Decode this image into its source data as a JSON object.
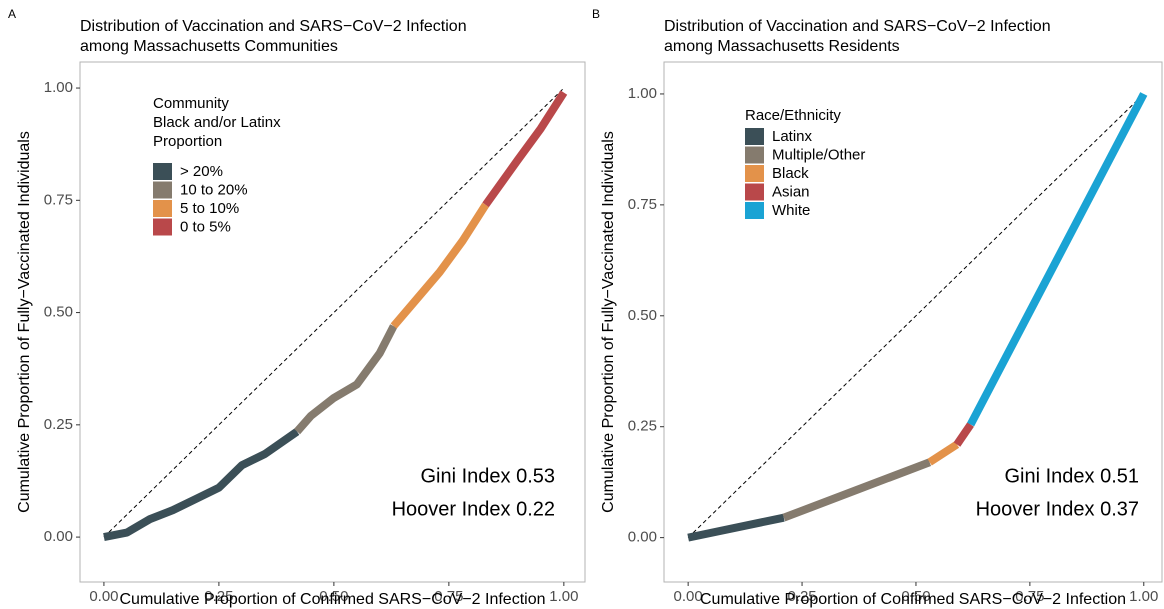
{
  "chart_data": [
    {
      "type": "line",
      "panel": "A",
      "title": [
        "Distribution of Vaccination and SARS−CoV−2 Infection",
        "among Massachusetts Communities"
      ],
      "xlabel": "Cumulative Proportion of Confirmed SARS−CoV−2 Infection",
      "ylabel": "Cumulative Proportion of Fully−Vaccinated Individuals",
      "legend_title": [
        "Community",
        "Black and/or Latinx",
        "Proportion"
      ],
      "annotations": [
        "Gini Index 0.53",
        "Hoover Index 0.22"
      ],
      "xlim": [
        -0.052,
        1.046
      ],
      "ylim": [
        -0.1,
        1.058
      ],
      "xticks": [
        {
          "value": 0,
          "label": "0.00"
        },
        {
          "value": 0.25,
          "label": "0.25"
        },
        {
          "value": 0.5,
          "label": "0.50"
        },
        {
          "value": 0.75,
          "label": "0.75"
        },
        {
          "value": 1,
          "label": "1.00"
        }
      ],
      "yticks": [
        {
          "value": 0,
          "label": "0.00"
        },
        {
          "value": 0.25,
          "label": "0.25"
        },
        {
          "value": 0.5,
          "label": "0.50"
        },
        {
          "value": 0.75,
          "label": "0.75"
        },
        {
          "value": 1,
          "label": "1.00"
        }
      ],
      "series": [
        {
          "name": "> 20%",
          "color": "#3b4f57",
          "x": [
            0,
            0.05,
            0.1,
            0.15,
            0.2,
            0.25,
            0.3,
            0.35,
            0.42
          ],
          "values": [
            0,
            0.01,
            0.04,
            0.06,
            0.085,
            0.11,
            0.16,
            0.185,
            0.235
          ]
        },
        {
          "name": "10 to 20%",
          "color": "#857b6e",
          "x": [
            0.42,
            0.45,
            0.5,
            0.55,
            0.6,
            0.63
          ],
          "values": [
            0.235,
            0.27,
            0.31,
            0.34,
            0.41,
            0.47
          ]
        },
        {
          "name": "5 to 10%",
          "color": "#e3924a",
          "x": [
            0.63,
            0.68,
            0.73,
            0.78,
            0.83
          ],
          "values": [
            0.47,
            0.53,
            0.59,
            0.66,
            0.74
          ]
        },
        {
          "name": "0 to 5%",
          "color": "#b9484a",
          "x": [
            0.83,
            0.9,
            0.95,
            1.0
          ],
          "values": [
            0.74,
            0.84,
            0.91,
            0.99
          ]
        }
      ]
    },
    {
      "type": "line",
      "panel": "B",
      "title": [
        "Distribution of Vaccination and SARS−CoV−2 Infection",
        "among Massachusetts Residents"
      ],
      "xlabel": "Cumulative Proportion of Confirmed SARS−CoV−2 Infection",
      "ylabel": "Cumulative Proportion of Fully−Vaccinated Individuals",
      "legend_title": [
        "Race/Ethnicity"
      ],
      "annotations": [
        "Gini Index 0.51",
        "Hoover Index 0.37"
      ],
      "xlim": [
        -0.053,
        1.04
      ],
      "ylim": [
        -0.1,
        1.072
      ],
      "xticks": [
        {
          "value": 0,
          "label": "0.00"
        },
        {
          "value": 0.25,
          "label": "0.25"
        },
        {
          "value": 0.5,
          "label": "0.50"
        },
        {
          "value": 0.75,
          "label": "0.75"
        },
        {
          "value": 1,
          "label": "1.00"
        }
      ],
      "yticks": [
        {
          "value": 0,
          "label": "0.00"
        },
        {
          "value": 0.25,
          "label": "0.25"
        },
        {
          "value": 0.5,
          "label": "0.50"
        },
        {
          "value": 0.75,
          "label": "0.75"
        },
        {
          "value": 1,
          "label": "1.00"
        }
      ],
      "series": [
        {
          "name": "Latinx",
          "color": "#3b4f57",
          "x": [
            0,
            0.21
          ],
          "values": [
            0,
            0.045
          ]
        },
        {
          "name": "Multiple/Other",
          "color": "#857b6e",
          "x": [
            0.21,
            0.53
          ],
          "values": [
            0.045,
            0.17
          ]
        },
        {
          "name": "Black",
          "color": "#e3924a",
          "x": [
            0.53,
            0.59
          ],
          "values": [
            0.17,
            0.21
          ]
        },
        {
          "name": "Asian",
          "color": "#b9484a",
          "x": [
            0.59,
            0.62
          ],
          "values": [
            0.21,
            0.255
          ]
        },
        {
          "name": "White",
          "color": "#1aa3d4",
          "x": [
            0.62,
            1.0
          ],
          "values": [
            0.255,
            1.0
          ]
        }
      ]
    }
  ]
}
